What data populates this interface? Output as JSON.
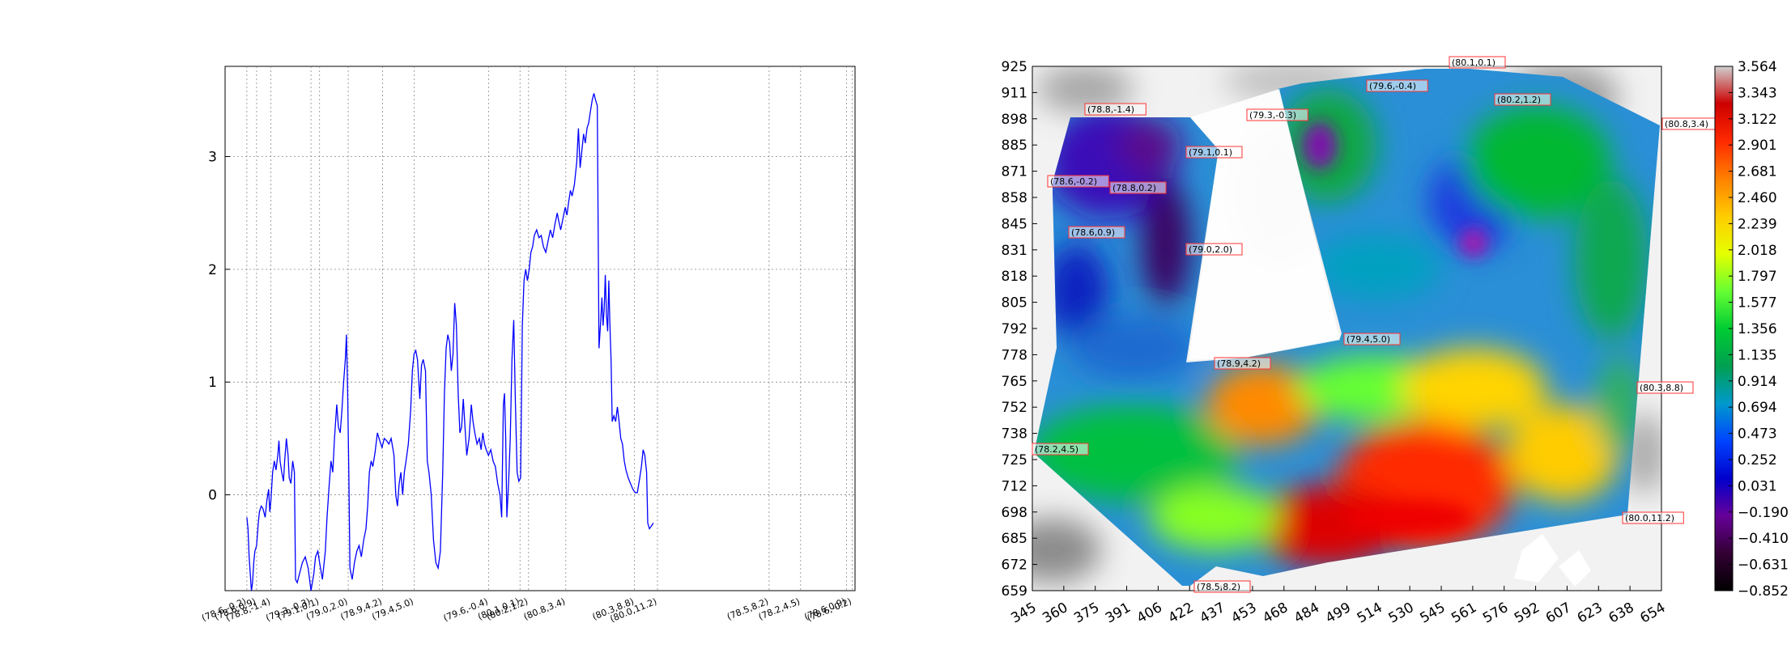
{
  "chart_data": [
    {
      "type": "line",
      "title": "",
      "xlabel": "",
      "ylabel": "",
      "ylim": [
        -0.85,
        3.8
      ],
      "y_ticks": [
        0,
        1,
        2,
        3
      ],
      "grid": true,
      "colors": {
        "line": "#0000ff",
        "grid": "#888888"
      },
      "x_tick_labels": [
        {
          "x": 38,
          "label": "(78.6,-0.2)"
        },
        {
          "x": 55,
          "label": "(78.6,0.9)"
        },
        {
          "x": 80,
          "label": "(78.8,-1.4)"
        },
        {
          "x": 150,
          "label": "(79.3,-0.3)"
        },
        {
          "x": 165,
          "label": "(79.1,0.1)"
        },
        {
          "x": 215,
          "label": "(79.0,2.0)"
        },
        {
          "x": 275,
          "label": "(78.9,4.2)"
        },
        {
          "x": 330,
          "label": "(79.4,5.0)"
        },
        {
          "x": 460,
          "label": "(79.6,-0.4)"
        },
        {
          "x": 515,
          "label": "(80.1,0.1)"
        },
        {
          "x": 530,
          "label": "(80.2,1.2)"
        },
        {
          "x": 595,
          "label": "(80.8,3.4)"
        },
        {
          "x": 715,
          "label": "(80.3,8.8)"
        },
        {
          "x": 755,
          "label": "(80.0,11.2)"
        },
        {
          "x": 950,
          "label": "(78.5,8.2)"
        },
        {
          "x": 1005,
          "label": "(78.2,4.5)"
        },
        {
          "x": 1085,
          "label": "(78.6,0.9)"
        },
        {
          "x": 1095,
          "label": "(78.6,-0.2)"
        }
      ],
      "xlim": [
        0,
        1100
      ],
      "series": [
        {
          "values_xy": [
            [
              38,
              -0.2
            ],
            [
              40,
              -0.3
            ],
            [
              42,
              -0.55
            ],
            [
              44,
              -0.7
            ],
            [
              46,
              -0.85
            ],
            [
              48,
              -0.78
            ],
            [
              50,
              -0.6
            ],
            [
              52,
              -0.5
            ],
            [
              55,
              -0.45
            ],
            [
              58,
              -0.25
            ],
            [
              60,
              -0.15
            ],
            [
              63,
              -0.1
            ],
            [
              66,
              -0.12
            ],
            [
              70,
              -0.2
            ],
            [
              73,
              -0.05
            ],
            [
              76,
              0.05
            ],
            [
              78,
              -0.15
            ],
            [
              80,
              -0.05
            ],
            [
              83,
              0.2
            ],
            [
              86,
              0.3
            ],
            [
              89,
              0.22
            ],
            [
              92,
              0.35
            ],
            [
              94,
              0.48
            ],
            [
              96,
              0.3
            ],
            [
              99,
              0.2
            ],
            [
              102,
              0.12
            ],
            [
              104,
              0.3
            ],
            [
              107,
              0.5
            ],
            [
              110,
              0.35
            ],
            [
              112,
              0.15
            ],
            [
              115,
              0.1
            ],
            [
              118,
              0.3
            ],
            [
              121,
              0.2
            ],
            [
              123,
              -0.75
            ],
            [
              126,
              -0.78
            ],
            [
              130,
              -0.7
            ],
            [
              135,
              -0.6
            ],
            [
              140,
              -0.55
            ],
            [
              145,
              -0.65
            ],
            [
              150,
              -0.85
            ],
            [
              155,
              -0.7
            ],
            [
              158,
              -0.55
            ],
            [
              162,
              -0.5
            ],
            [
              165,
              -0.6
            ],
            [
              170,
              -0.75
            ],
            [
              175,
              -0.5
            ],
            [
              178,
              -0.2
            ],
            [
              182,
              0.1
            ],
            [
              185,
              0.3
            ],
            [
              188,
              0.2
            ],
            [
              191,
              0.5
            ],
            [
              195,
              0.8
            ],
            [
              198,
              0.6
            ],
            [
              201,
              0.55
            ],
            [
              204,
              0.75
            ],
            [
              207,
              1.0
            ],
            [
              210,
              1.2
            ],
            [
              212,
              1.42
            ],
            [
              214,
              0.9
            ],
            [
              216,
              0.2
            ],
            [
              218,
              -0.65
            ],
            [
              222,
              -0.75
            ],
            [
              226,
              -0.6
            ],
            [
              230,
              -0.5
            ],
            [
              234,
              -0.45
            ],
            [
              238,
              -0.55
            ],
            [
              242,
              -0.4
            ],
            [
              246,
              -0.3
            ],
            [
              249,
              -0.1
            ],
            [
              252,
              0.2
            ],
            [
              255,
              0.3
            ],
            [
              258,
              0.25
            ],
            [
              262,
              0.38
            ],
            [
              266,
              0.55
            ],
            [
              270,
              0.48
            ],
            [
              274,
              0.42
            ],
            [
              278,
              0.5
            ],
            [
              282,
              0.48
            ],
            [
              286,
              0.45
            ],
            [
              290,
              0.5
            ],
            [
              295,
              0.35
            ],
            [
              298,
              0.0
            ],
            [
              301,
              -0.1
            ],
            [
              304,
              0.1
            ],
            [
              307,
              0.2
            ],
            [
              310,
              0.0
            ],
            [
              313,
              0.2
            ],
            [
              316,
              0.3
            ],
            [
              320,
              0.45
            ],
            [
              324,
              0.75
            ],
            [
              327,
              1.1
            ],
            [
              330,
              1.25
            ],
            [
              333,
              1.28
            ],
            [
              336,
              1.2
            ],
            [
              340,
              0.85
            ],
            [
              343,
              1.15
            ],
            [
              346,
              1.2
            ],
            [
              350,
              1.1
            ],
            [
              353,
              0.3
            ],
            [
              356,
              0.2
            ],
            [
              360,
              0.0
            ],
            [
              364,
              -0.4
            ],
            [
              368,
              -0.6
            ],
            [
              372,
              -0.65
            ],
            [
              376,
              -0.5
            ],
            [
              380,
              0.2
            ],
            [
              383,
              0.9
            ],
            [
              386,
              1.3
            ],
            [
              389,
              1.42
            ],
            [
              392,
              1.35
            ],
            [
              395,
              1.1
            ],
            [
              398,
              1.25
            ],
            [
              401,
              1.7
            ],
            [
              404,
              1.5
            ],
            [
              407,
              0.9
            ],
            [
              410,
              0.55
            ],
            [
              413,
              0.6
            ],
            [
              416,
              0.85
            ],
            [
              419,
              0.6
            ],
            [
              422,
              0.35
            ],
            [
              426,
              0.5
            ],
            [
              430,
              0.8
            ],
            [
              433,
              0.65
            ],
            [
              436,
              0.55
            ],
            [
              440,
              0.45
            ],
            [
              444,
              0.5
            ],
            [
              447,
              0.4
            ],
            [
              450,
              0.55
            ],
            [
              453,
              0.45
            ],
            [
              456,
              0.4
            ],
            [
              460,
              0.35
            ],
            [
              464,
              0.4
            ],
            [
              468,
              0.3
            ],
            [
              472,
              0.25
            ],
            [
              476,
              0.1
            ],
            [
              480,
              0.0
            ],
            [
              483,
              -0.2
            ],
            [
              486,
              0.8
            ],
            [
              488,
              0.9
            ],
            [
              490,
              0.5
            ],
            [
              492,
              -0.2
            ],
            [
              495,
              0.1
            ],
            [
              498,
              0.5
            ],
            [
              501,
              1.2
            ],
            [
              504,
              1.55
            ],
            [
              507,
              0.8
            ],
            [
              510,
              0.2
            ],
            [
              513,
              0.12
            ],
            [
              516,
              0.15
            ],
            [
              519,
              1.5
            ],
            [
              522,
              1.9
            ],
            [
              525,
              2.0
            ],
            [
              528,
              1.9
            ],
            [
              531,
              2.0
            ],
            [
              534,
              2.15
            ],
            [
              537,
              2.2
            ],
            [
              540,
              2.3
            ],
            [
              544,
              2.35
            ],
            [
              548,
              2.28
            ],
            [
              552,
              2.3
            ],
            [
              556,
              2.2
            ],
            [
              560,
              2.15
            ],
            [
              564,
              2.25
            ],
            [
              568,
              2.35
            ],
            [
              572,
              2.28
            ],
            [
              576,
              2.4
            ],
            [
              580,
              2.5
            ],
            [
              583,
              2.42
            ],
            [
              586,
              2.35
            ],
            [
              590,
              2.45
            ],
            [
              594,
              2.55
            ],
            [
              597,
              2.48
            ],
            [
              600,
              2.6
            ],
            [
              603,
              2.7
            ],
            [
              606,
              2.65
            ],
            [
              610,
              2.75
            ],
            [
              614,
              2.95
            ],
            [
              617,
              3.25
            ],
            [
              620,
              2.9
            ],
            [
              623,
              3.05
            ],
            [
              626,
              3.2
            ],
            [
              629,
              3.12
            ],
            [
              632,
              3.25
            ],
            [
              635,
              3.3
            ],
            [
              638,
              3.4
            ],
            [
              641,
              3.5
            ],
            [
              644,
              3.56
            ],
            [
              647,
              3.5
            ],
            [
              650,
              3.45
            ],
            [
              653,
              1.3
            ],
            [
              656,
              1.55
            ],
            [
              658,
              1.75
            ],
            [
              660,
              1.5
            ],
            [
              662,
              1.65
            ],
            [
              664,
              1.95
            ],
            [
              666,
              1.6
            ],
            [
              668,
              1.45
            ],
            [
              670,
              1.9
            ],
            [
              672,
              1.5
            ],
            [
              674,
              1.2
            ],
            [
              676,
              0.65
            ],
            [
              679,
              0.7
            ],
            [
              682,
              0.65
            ],
            [
              685,
              0.78
            ],
            [
              688,
              0.65
            ],
            [
              691,
              0.5
            ],
            [
              694,
              0.45
            ],
            [
              697,
              0.3
            ],
            [
              700,
              0.22
            ],
            [
              704,
              0.15
            ],
            [
              708,
              0.1
            ],
            [
              712,
              0.05
            ],
            [
              716,
              0.02
            ],
            [
              720,
              0.02
            ],
            [
              724,
              0.15
            ],
            [
              727,
              0.25
            ],
            [
              730,
              0.4
            ],
            [
              733,
              0.35
            ],
            [
              736,
              0.2
            ],
            [
              738,
              -0.25
            ],
            [
              741,
              -0.3
            ],
            [
              744,
              -0.28
            ],
            [
              748,
              -0.25
            ]
          ]
        }
      ]
    },
    {
      "type": "heatmap",
      "title": "",
      "xlabel": "",
      "ylabel": "",
      "x_tick_labels": [
        "345",
        "360",
        "375",
        "391",
        "406",
        "422",
        "437",
        "453",
        "468",
        "484",
        "499",
        "514",
        "530",
        "545",
        "561",
        "576",
        "592",
        "607",
        "623",
        "638",
        "654"
      ],
      "y_tick_labels": [
        "925",
        "911",
        "898",
        "885",
        "871",
        "858",
        "845",
        "831",
        "818",
        "805",
        "792",
        "778",
        "765",
        "752",
        "738",
        "725",
        "712",
        "698",
        "685",
        "672",
        "659"
      ],
      "colorbar": {
        "ticks": [
          "3.564",
          "3.343",
          "3.122",
          "2.901",
          "2.681",
          "2.460",
          "2.239",
          "2.018",
          "1.797",
          "1.577",
          "1.356",
          "1.135",
          "0.914",
          "0.694",
          "0.473",
          "0.252",
          "0.031",
          "−0.190",
          "−0.410",
          "−0.631",
          "−0.852"
        ],
        "colors": [
          "#d0d0d0",
          "#cc0000",
          "#ff2a00",
          "#ff8000",
          "#ffcc00",
          "#e6ff00",
          "#66ff33",
          "#00cc33",
          "#00a050",
          "#0099cc",
          "#0044ff",
          "#0000cc",
          "#660099",
          "#330033",
          "#000000"
        ]
      },
      "annotations": [
        {
          "label": "(80.1,0.1)"
        },
        {
          "label": "(79.6,-0.4)"
        },
        {
          "label": "(80.2,1.2)"
        },
        {
          "label": "(78.8,-1.4)"
        },
        {
          "label": "(79.3,-0.3)"
        },
        {
          "label": "(80.8,3.4)"
        },
        {
          "label": "(79.1,0.1)"
        },
        {
          "label": "(78.6,-0.2)"
        },
        {
          "label": "(78.8,0.2)"
        },
        {
          "label": "(78.6,0.9)"
        },
        {
          "label": "(79.0,2.0)"
        },
        {
          "label": "(79.4,5.0)"
        },
        {
          "label": "(78.9,4.2)"
        },
        {
          "label": "(80.3,8.8)"
        },
        {
          "label": "(78.2,4.5)"
        },
        {
          "label": "(80.0,11.2)"
        },
        {
          "label": "(78.5,8.2)"
        }
      ]
    }
  ]
}
